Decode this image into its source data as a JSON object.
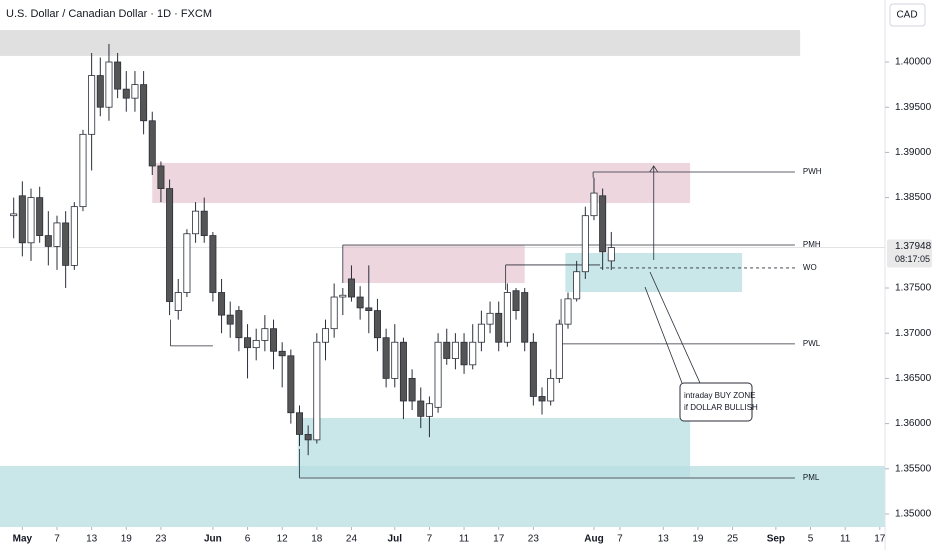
{
  "chart_data": {
    "type": "candlestick",
    "title": "U.S. Dollar / Canadian Dollar · 1D · FXCM",
    "currency": "CAD",
    "open": [
      1.383,
      1.3852,
      1.38,
      1.385,
      1.3808,
      1.3796,
      1.3822,
      1.3775,
      1.384,
      1.392,
      1.3985,
      1.395,
      1.4,
      1.397,
      1.396,
      1.3975,
      1.3935,
      1.3885,
      1.386,
      1.3725,
      1.3745,
      1.381,
      1.3835,
      1.3808,
      1.3745,
      1.372,
      1.3725,
      1.3695,
      1.3684,
      1.3692,
      1.3705,
      1.368,
      1.3675,
      1.3612,
      1.3588,
      1.3582,
      1.369,
      1.3705,
      1.374,
      1.376,
      1.374,
      1.3728,
      1.3725,
      1.3695,
      1.365,
      1.369,
      1.365,
      1.3625,
      1.3608,
      1.3618,
      1.369,
      1.3672,
      1.369,
      1.3665,
      1.369,
      1.371,
      1.3722,
      1.369,
      1.3747,
      1.3745,
      1.369,
      1.363,
      1.3625,
      1.365,
      1.371,
      1.3738,
      1.3768,
      1.383,
      1.3852,
      1.378
    ],
    "high": [
      1.385,
      1.3868,
      1.386,
      1.3862,
      1.3835,
      1.383,
      1.3835,
      1.3845,
      1.3925,
      1.401,
      1.4005,
      1.402,
      1.401,
      1.399,
      1.399,
      1.399,
      1.3945,
      1.389,
      1.387,
      1.376,
      1.3815,
      1.3845,
      1.385,
      1.3812,
      1.376,
      1.3735,
      1.373,
      1.371,
      1.3705,
      1.372,
      1.3715,
      1.369,
      1.3682,
      1.362,
      1.3598,
      1.37,
      1.3715,
      1.3755,
      1.375,
      1.3775,
      1.3752,
      1.3775,
      1.3738,
      1.3705,
      1.371,
      1.3695,
      1.366,
      1.364,
      1.363,
      1.37,
      1.3705,
      1.37,
      1.37,
      1.371,
      1.3725,
      1.3735,
      1.3735,
      1.3755,
      1.375,
      1.375,
      1.37,
      1.364,
      1.366,
      1.3715,
      1.3745,
      1.378,
      1.384,
      1.3872,
      1.386,
      1.3812
    ],
    "low": [
      1.3805,
      1.3785,
      1.378,
      1.38,
      1.3775,
      1.377,
      1.375,
      1.377,
      1.3835,
      1.388,
      1.394,
      1.3935,
      1.396,
      1.3945,
      1.3945,
      1.392,
      1.3875,
      1.3845,
      1.372,
      1.3715,
      1.374,
      1.38,
      1.38,
      1.3735,
      1.37,
      1.3695,
      1.368,
      1.365,
      1.367,
      1.368,
      1.366,
      1.364,
      1.36,
      1.3575,
      1.3565,
      1.3578,
      1.367,
      1.3695,
      1.372,
      1.3735,
      1.3715,
      1.37,
      1.368,
      1.364,
      1.364,
      1.3605,
      1.3615,
      1.3595,
      1.3585,
      1.3612,
      1.3665,
      1.366,
      1.3655,
      1.366,
      1.368,
      1.37,
      1.368,
      1.3685,
      1.3715,
      1.368,
      1.362,
      1.361,
      1.362,
      1.3645,
      1.3705,
      1.3735,
      1.376,
      1.3825,
      1.377,
      1.377
    ],
    "close": [
      1.3832,
      1.38,
      1.385,
      1.3808,
      1.3796,
      1.3822,
      1.3775,
      1.384,
      1.392,
      1.3985,
      1.395,
      1.4,
      1.397,
      1.396,
      1.3975,
      1.3935,
      1.3885,
      1.386,
      1.3735,
      1.3745,
      1.381,
      1.3835,
      1.3808,
      1.3745,
      1.372,
      1.371,
      1.3695,
      1.3684,
      1.3692,
      1.3705,
      1.368,
      1.3675,
      1.3612,
      1.3588,
      1.3582,
      1.369,
      1.3705,
      1.374,
      1.3742,
      1.374,
      1.3728,
      1.3725,
      1.3695,
      1.365,
      1.369,
      1.3625,
      1.3625,
      1.3608,
      1.3622,
      1.369,
      1.3672,
      1.369,
      1.3665,
      1.369,
      1.371,
      1.3722,
      1.369,
      1.3745,
      1.3725,
      1.369,
      1.363,
      1.3625,
      1.365,
      1.371,
      1.3738,
      1.3768,
      1.383,
      1.3855,
      1.379,
      1.37948
    ],
    "up_color": "#ffffff",
    "down_color": "#555555",
    "outline_color": "#2a2e39",
    "last_price": 1.37948,
    "countdown": "08:17:05",
    "ylim": [
      1.34856,
      1.40686
    ],
    "yticks": [
      {
        "value": 1.4,
        "label": "1.40000"
      },
      {
        "value": 1.395,
        "label": "1.39500"
      },
      {
        "value": 1.39,
        "label": "1.39000"
      },
      {
        "value": 1.385,
        "label": "1.38500"
      },
      {
        "value": 1.375,
        "label": "1.37500"
      },
      {
        "value": 1.37,
        "label": "1.37000"
      },
      {
        "value": 1.365,
        "label": "1.36500"
      },
      {
        "value": 1.36,
        "label": "1.36000"
      },
      {
        "value": 1.355,
        "label": "1.35500"
      },
      {
        "value": 1.35,
        "label": "1.35000"
      }
    ],
    "xlim": [
      -1.58,
      100.6
    ],
    "xticks": [
      {
        "value": 1,
        "label": "May"
      },
      {
        "value": 5,
        "label": "7"
      },
      {
        "value": 9,
        "label": "13"
      },
      {
        "value": 13,
        "label": "19"
      },
      {
        "value": 17,
        "label": "23"
      },
      {
        "value": 23,
        "label": "Jun"
      },
      {
        "value": 27,
        "label": "6"
      },
      {
        "value": 31,
        "label": "12"
      },
      {
        "value": 35,
        "label": "18"
      },
      {
        "value": 39,
        "label": "24"
      },
      {
        "value": 44,
        "label": "Jul"
      },
      {
        "value": 48,
        "label": "7"
      },
      {
        "value": 52,
        "label": "11"
      },
      {
        "value": 56,
        "label": "17"
      },
      {
        "value": 60,
        "label": "23"
      },
      {
        "value": 67,
        "label": "Aug"
      },
      {
        "value": 70,
        "label": "7"
      },
      {
        "value": 75,
        "label": "13"
      },
      {
        "value": 79,
        "label": "19"
      },
      {
        "value": 83,
        "label": "25"
      },
      {
        "value": 88,
        "label": "Sep"
      },
      {
        "value": 92,
        "label": "5"
      },
      {
        "value": 96,
        "label": "11"
      },
      {
        "value": 100,
        "label": "17"
      }
    ],
    "zones": [
      {
        "ylim": [
          1.40067,
          1.40354
        ],
        "xlim": [
          -1.58,
          90.8
        ],
        "color": "#d6d6d6"
      },
      {
        "ylim": [
          1.3844,
          1.38883
        ],
        "xlim": [
          16,
          78.1
        ],
        "color": "#e7c8d3"
      },
      {
        "ylim": [
          1.37555,
          1.37976
        ],
        "xlim": [
          38,
          59
        ],
        "color": "#e7c8d3"
      },
      {
        "ylim": [
          1.37456,
          1.37887
        ],
        "xlim": [
          63.7,
          84.1
        ],
        "color": "#b7dde1"
      },
      {
        "ylim": [
          1.3541,
          1.36062
        ],
        "xlim": [
          32.8,
          78.1
        ],
        "color": "#b7dde1"
      },
      {
        "ylim": [
          1.34856,
          1.35531
        ],
        "xlim": [
          -1.58,
          100.6
        ],
        "color": "#b7dde1"
      }
    ],
    "levels": [
      {
        "label": "PWH",
        "value": 1.38783,
        "xlim": [
          66.9,
          90.2
        ],
        "drop_to": 1.3872
      },
      {
        "label": "PMH",
        "value": 1.37976,
        "xlim": [
          38,
          90.2
        ],
        "drop_to": 1.37555
      },
      {
        "label": "WO",
        "value": 1.37722,
        "xlim": [
          67.7,
          90.2
        ],
        "dashed": true
      },
      {
        "label": "PWL",
        "value": 1.36882,
        "xlim": [
          63.2,
          90.2
        ],
        "drop_to": 1.3738
      },
      {
        "label": "PML",
        "value": 1.35398,
        "xlim": [
          33,
          90.2
        ],
        "drop_to": 1.3572
      }
    ],
    "lines": [
      {
        "value": 1.37755,
        "xlim": [
          56.8,
          67.7
        ],
        "drop_to": 1.37478
      },
      {
        "value": 1.3686,
        "xlim": [
          18.1,
          23
        ],
        "drop_to": 1.3715
      }
    ],
    "arrow": {
      "x": 73.9,
      "from": 1.3781,
      "to": 1.3885
    },
    "callout": {
      "lines": [
        "intraday BUY ZONE",
        "if DOLLAR BULLISH"
      ]
    }
  }
}
